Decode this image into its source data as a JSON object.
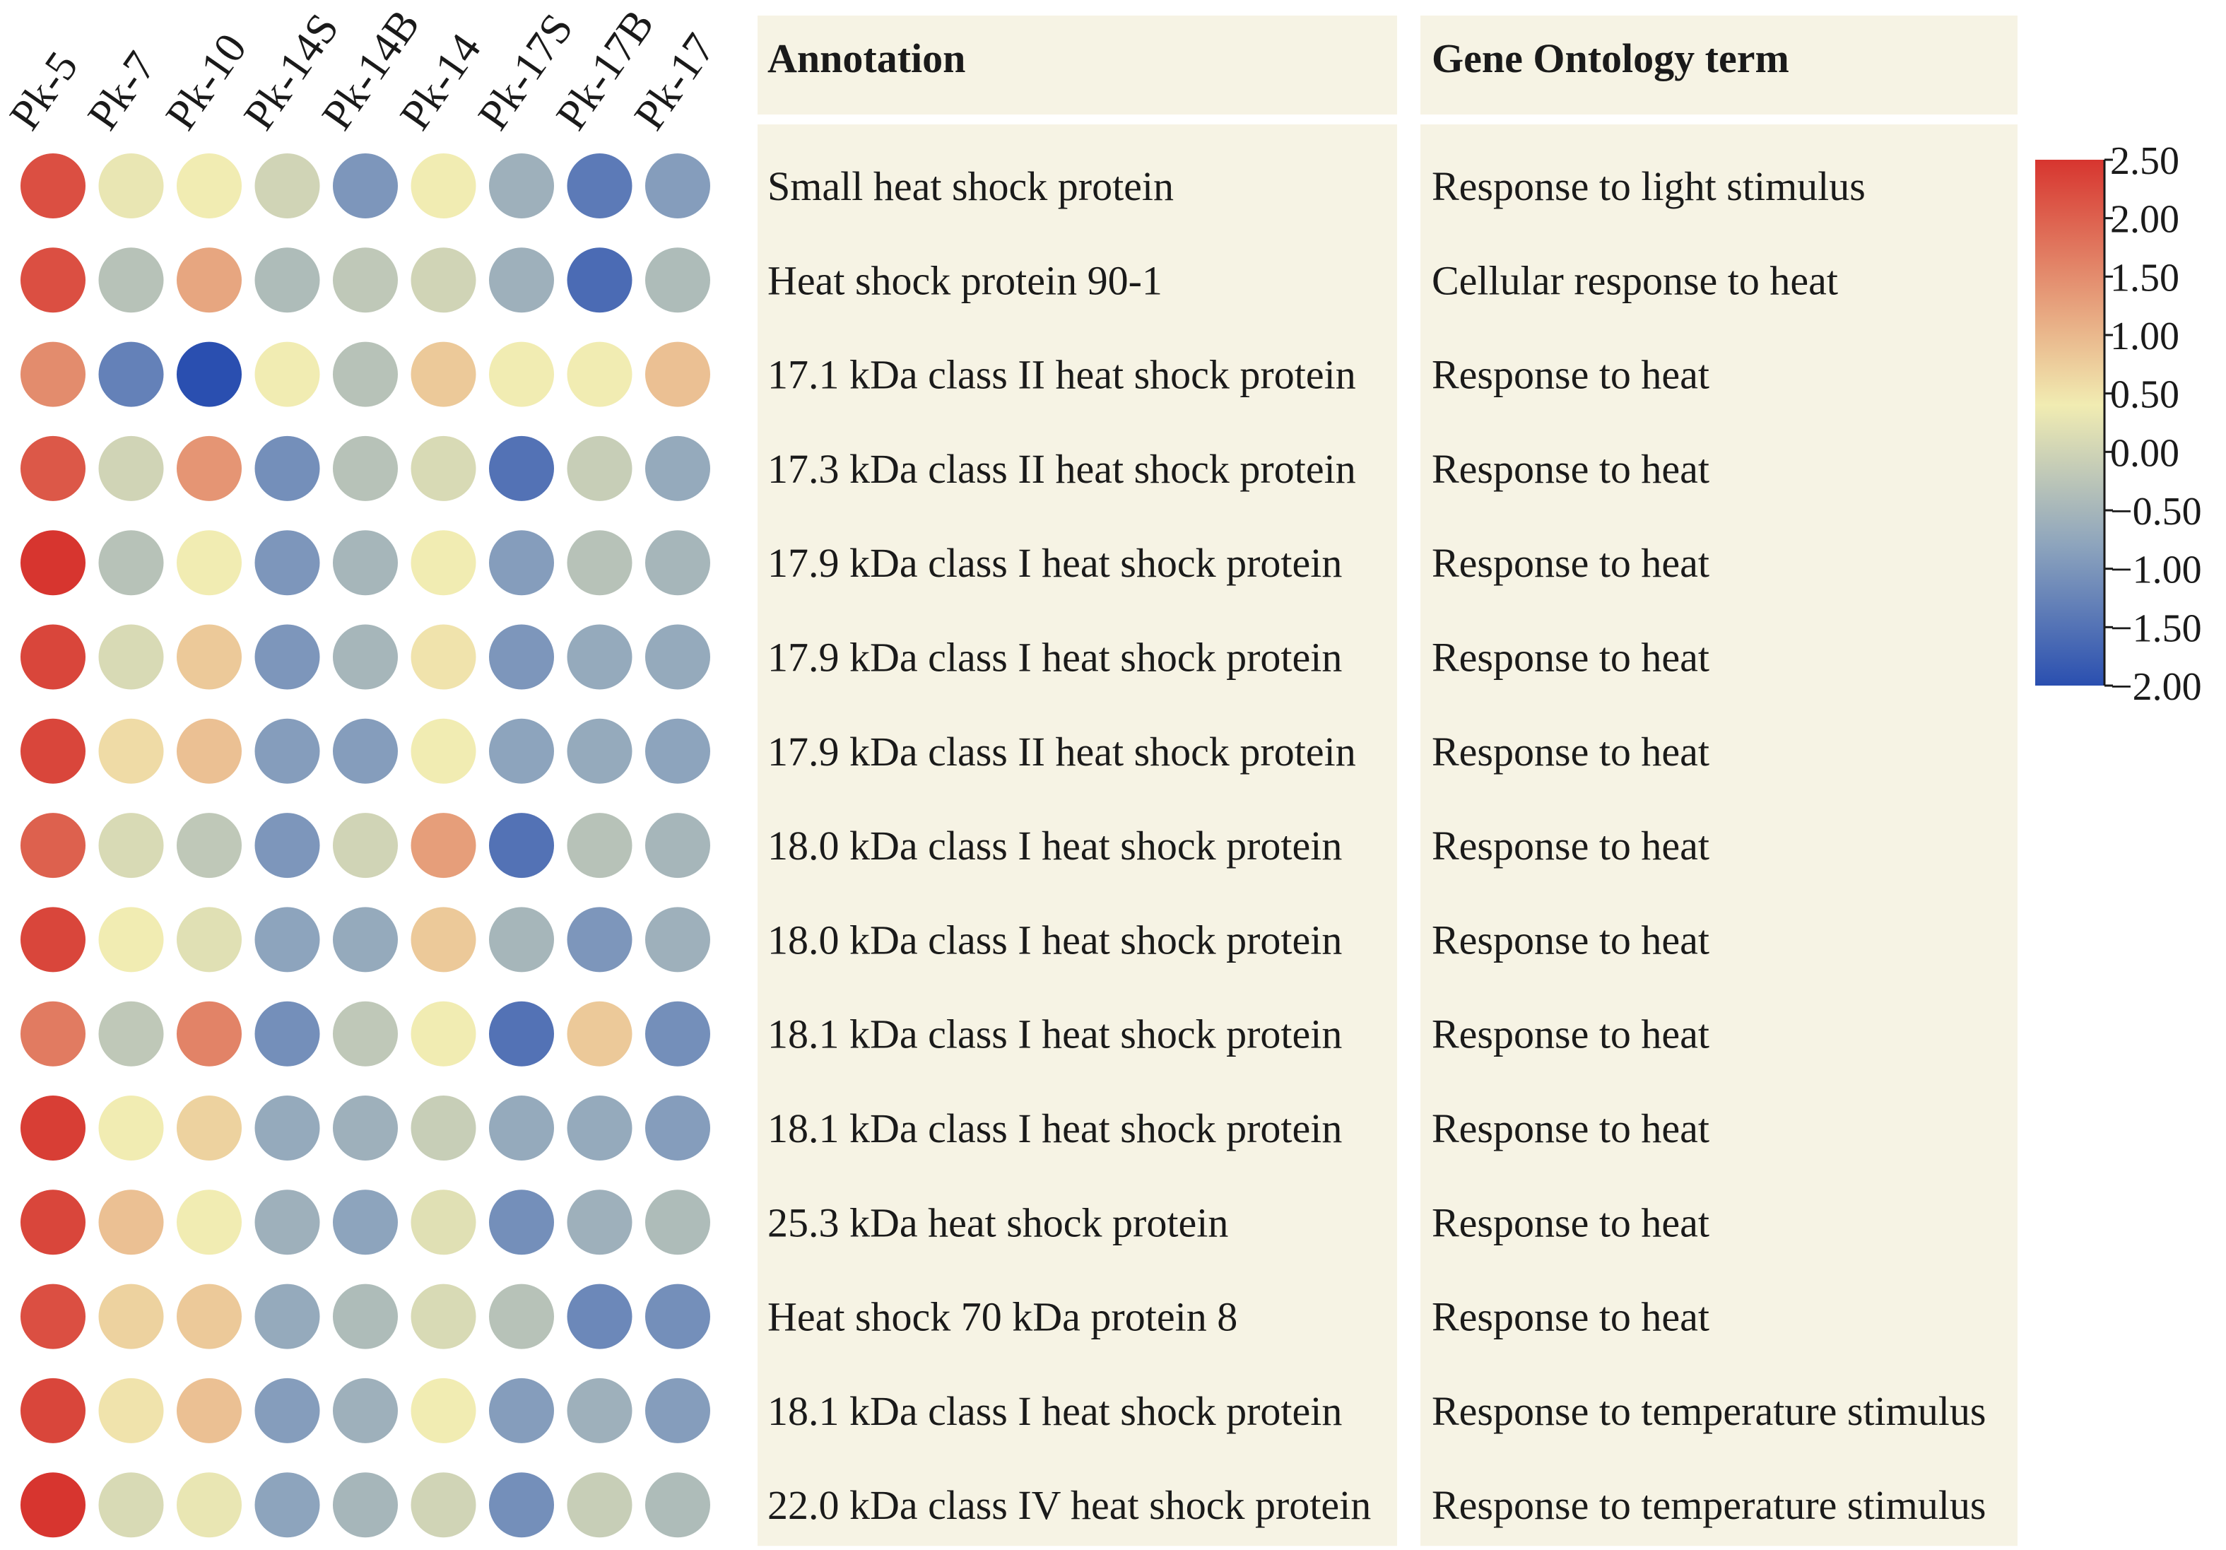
{
  "chart_data": {
    "type": "heatmap",
    "columns": [
      "Pk-5",
      "Pk-7",
      "Pk-10",
      "Pk-14S",
      "Pk-14B",
      "Pk-14",
      "Pk-17S",
      "Pk-17B",
      "Pk-17"
    ],
    "headers": {
      "annotation": "Annotation",
      "go_term": "Gene Ontology term"
    },
    "rows": [
      {
        "annotation": "Small heat shock protein",
        "go_term": "Response to light stimulus",
        "values": [
          2.2,
          0.3,
          0.4,
          0.0,
          -1.0,
          0.4,
          -0.6,
          -1.4,
          -0.9
        ]
      },
      {
        "annotation": "Heat shock protein 90-1",
        "go_term": "Cellular response to heat",
        "values": [
          2.2,
          -0.3,
          1.2,
          -0.4,
          -0.2,
          0.0,
          -0.6,
          -1.6,
          -0.4
        ]
      },
      {
        "annotation": "17.1 kDa class II heat shock protein",
        "go_term": "Response to heat",
        "values": [
          1.5,
          -1.3,
          -2.0,
          0.4,
          -0.3,
          0.8,
          0.4,
          0.4,
          0.9
        ]
      },
      {
        "annotation": "17.3 kDa class II heat shock protein",
        "go_term": "Response to heat",
        "values": [
          2.1,
          0.0,
          1.4,
          -1.1,
          -0.3,
          0.1,
          -1.5,
          -0.1,
          -0.7
        ]
      },
      {
        "annotation": "17.9 kDa class I heat shock protein",
        "go_term": "Response to heat",
        "values": [
          2.5,
          -0.3,
          0.4,
          -1.0,
          -0.5,
          0.4,
          -0.9,
          -0.3,
          -0.5
        ]
      },
      {
        "annotation": "17.9 kDa class I heat shock protein",
        "go_term": "Response to heat",
        "values": [
          2.3,
          0.1,
          0.8,
          -1.0,
          -0.5,
          0.5,
          -1.0,
          -0.7,
          -0.7
        ]
      },
      {
        "annotation": "17.9 kDa class II heat shock protein",
        "go_term": "Response to heat",
        "values": [
          2.3,
          0.6,
          0.9,
          -0.9,
          -0.9,
          0.4,
          -0.8,
          -0.7,
          -0.8
        ]
      },
      {
        "annotation": "18.0 kDa class I heat shock protein",
        "go_term": "Response to heat",
        "values": [
          2.0,
          0.1,
          -0.2,
          -1.0,
          0.0,
          1.3,
          -1.5,
          -0.3,
          -0.5
        ]
      },
      {
        "annotation": "18.0 kDa class I heat shock protein",
        "go_term": "Response to heat",
        "values": [
          2.3,
          0.4,
          0.2,
          -0.8,
          -0.7,
          0.8,
          -0.5,
          -1.0,
          -0.6
        ]
      },
      {
        "annotation": "18.1 kDa class I heat shock protein",
        "go_term": "Response to heat",
        "values": [
          1.7,
          -0.2,
          1.6,
          -1.1,
          -0.2,
          0.4,
          -1.5,
          0.8,
          -1.1
        ]
      },
      {
        "annotation": "18.1 kDa class I heat shock protein",
        "go_term": "Response to heat",
        "values": [
          2.4,
          0.4,
          0.7,
          -0.7,
          -0.6,
          -0.1,
          -0.7,
          -0.7,
          -0.9
        ]
      },
      {
        "annotation": "25.3 kDa heat shock protein",
        "go_term": "Response to heat",
        "values": [
          2.3,
          0.9,
          0.4,
          -0.6,
          -0.8,
          0.2,
          -1.1,
          -0.6,
          -0.4
        ]
      },
      {
        "annotation": "Heat shock 70 kDa protein 8",
        "go_term": "Response to heat",
        "values": [
          2.2,
          0.7,
          0.8,
          -0.7,
          -0.4,
          0.1,
          -0.3,
          -1.2,
          -1.1
        ]
      },
      {
        "annotation": "18.1 kDa class I heat shock protein",
        "go_term": "Response to temperature stimulus",
        "values": [
          2.3,
          0.5,
          0.9,
          -0.9,
          -0.6,
          0.4,
          -0.9,
          -0.6,
          -0.9
        ]
      },
      {
        "annotation": "22.0 kDa class IV heat shock protein",
        "go_term": "Response to temperature stimulus",
        "values": [
          2.5,
          0.1,
          0.3,
          -0.8,
          -0.5,
          0.0,
          -1.1,
          -0.1,
          -0.4
        ]
      }
    ],
    "colorbar": {
      "range": [
        -2.0,
        2.5
      ],
      "ticks": [
        2.5,
        2.0,
        1.5,
        1.0,
        0.5,
        0.0,
        -0.5,
        -1.0,
        -1.5,
        -2.0
      ],
      "tick_labels": [
        "2.50",
        "2.00",
        "1.50",
        "1.00",
        "0.50",
        "0.00",
        "−0.50",
        "−1.00",
        "−1.50",
        "−2.00"
      ],
      "colors": [
        "#2a4fb0",
        "#8da4bd",
        "#f1ecb2",
        "#d7352f"
      ]
    }
  }
}
